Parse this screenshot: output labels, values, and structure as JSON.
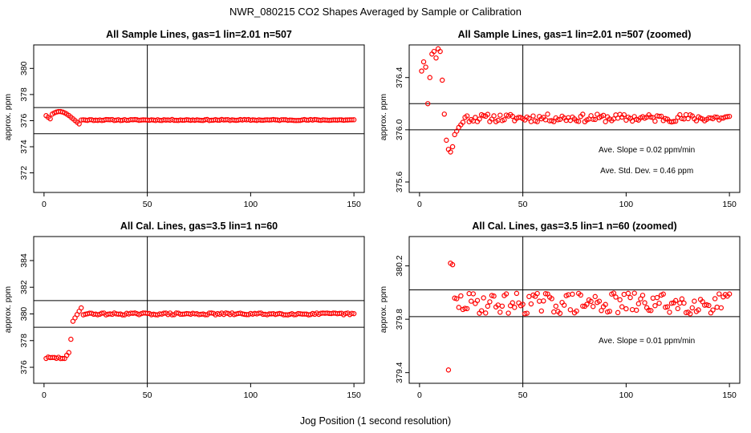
{
  "figure": {
    "title": "NWR_080215  CO2 Shapes Averaged by Sample or Calibration",
    "xlabel": "Jog Position (1 second resolution)",
    "point_color": "#ff0000",
    "line_color": "#000000"
  },
  "chart_data": [
    {
      "type": "scatter",
      "title": "All Sample Lines, gas=1 lin=2.01 n=507",
      "xlabel": "",
      "ylabel": "approx. ppm",
      "xlim": [
        -5,
        155
      ],
      "ylim": [
        370.5,
        381.8
      ],
      "xticks": [
        0,
        50,
        100,
        150
      ],
      "yticks": [
        372,
        374,
        376,
        378,
        380
      ],
      "xtick_labels": [
        "0",
        "50",
        "100",
        "150"
      ],
      "ytick_labels": [
        "372",
        "374",
        "376",
        "378",
        "380"
      ],
      "hlines": [
        375.0,
        377.0
      ],
      "vlines": [
        50
      ],
      "annotations": [],
      "shape": {
        "start_x": 1,
        "step": 1,
        "type": "sample",
        "spike": 0.0,
        "seed": 11
      },
      "note": "points listed in shape model below"
    },
    {
      "type": "scatter",
      "title": "All Sample Lines, gas=1 lin=2.01 n=507 (zoomed)",
      "xlabel": "",
      "ylabel": "approx. ppm",
      "xlim": [
        -5,
        155
      ],
      "ylim": [
        375.52,
        376.65
      ],
      "xticks": [
        0,
        50,
        100,
        150
      ],
      "yticks": [
        375.6,
        376.0,
        376.4
      ],
      "xtick_labels": [
        "0",
        "50",
        "100",
        "150"
      ],
      "ytick_labels": [
        "375.6",
        "376.0",
        "376.4"
      ],
      "hlines": [
        376.0,
        376.2
      ],
      "vlines": [
        50
      ],
      "annotations": [
        "Ave. Slope =  0.02  ppm/min",
        "Ave. Std. Dev. =  0.46  ppm"
      ],
      "shape": {
        "start_x": 1,
        "step": 1,
        "type": "sample_zoom",
        "spike": 0.0,
        "seed": 11
      }
    },
    {
      "type": "scatter",
      "title": "All Cal. Lines, gas=3.5 lin=1 n=60",
      "xlabel": "",
      "ylabel": "approx. ppm",
      "xlim": [
        -5,
        155
      ],
      "ylim": [
        374.8,
        385.8
      ],
      "xticks": [
        0,
        50,
        100,
        150
      ],
      "yticks": [
        376,
        378,
        380,
        382,
        384
      ],
      "xtick_labels": [
        "0",
        "50",
        "100",
        "150"
      ],
      "ytick_labels": [
        "376",
        "378",
        "380",
        "382",
        "384"
      ],
      "hlines": [
        379.0,
        381.0
      ],
      "vlines": [
        50
      ],
      "annotations": [],
      "shape": {
        "start_x": 1,
        "step": 1,
        "type": "cal",
        "spike": 0.0,
        "seed": 29
      }
    },
    {
      "type": "scatter",
      "title": "All Cal. Lines, gas=3.5 lin=1 n=60 (zoomed)",
      "xlabel": "",
      "ylabel": "approx. ppm",
      "xlim": [
        -5,
        155
      ],
      "ylim": [
        379.32,
        380.42
      ],
      "xticks": [
        0,
        50,
        100,
        150
      ],
      "yticks": [
        379.4,
        379.8,
        380.2
      ],
      "xtick_labels": [
        "0",
        "50",
        "100",
        "150"
      ],
      "ytick_labels": [
        "379.4",
        "379.8",
        "380.2"
      ],
      "hlines": [
        379.82,
        380.02
      ],
      "vlines": [
        50
      ],
      "annotations": [
        "Ave. Slope =  0.01  ppm/min"
      ],
      "shape": {
        "start_x": 14,
        "step": 1,
        "type": "cal_zoom",
        "spike": 0.0,
        "seed": 29
      }
    }
  ]
}
